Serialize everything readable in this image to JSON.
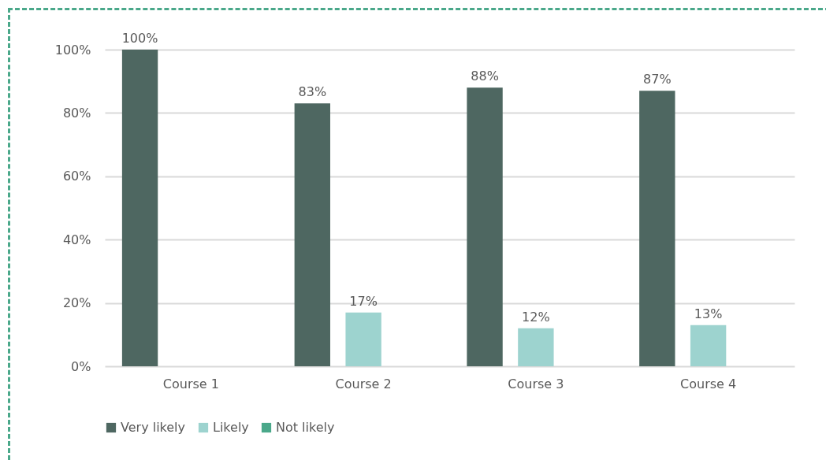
{
  "chart_data": {
    "type": "bar",
    "categories": [
      "Course 1",
      "Course 2",
      "Course 3",
      "Course 4"
    ],
    "series": [
      {
        "name": "Very likely",
        "color": "#4e6761",
        "values": [
          100,
          83,
          88,
          87
        ],
        "value_labels": [
          "100%",
          "83%",
          "88%",
          "87%"
        ]
      },
      {
        "name": "Likely",
        "color": "#9dd3cf",
        "values": [
          null,
          17,
          12,
          13
        ],
        "value_labels": [
          null,
          "17%",
          "12%",
          "13%"
        ]
      },
      {
        "name": "Not likely",
        "color": "#4aa88a",
        "values": [
          null,
          null,
          null,
          null
        ],
        "value_labels": [
          null,
          null,
          null,
          null
        ]
      }
    ],
    "ylim": [
      0,
      100
    ],
    "yticks": [
      {
        "value": 0,
        "label": "0%"
      },
      {
        "value": 20,
        "label": "20%"
      },
      {
        "value": 40,
        "label": "40%"
      },
      {
        "value": 60,
        "label": "60%"
      },
      {
        "value": 80,
        "label": "80%"
      },
      {
        "value": 100,
        "label": "100%"
      }
    ],
    "grid": "y",
    "legend": "bottom"
  }
}
